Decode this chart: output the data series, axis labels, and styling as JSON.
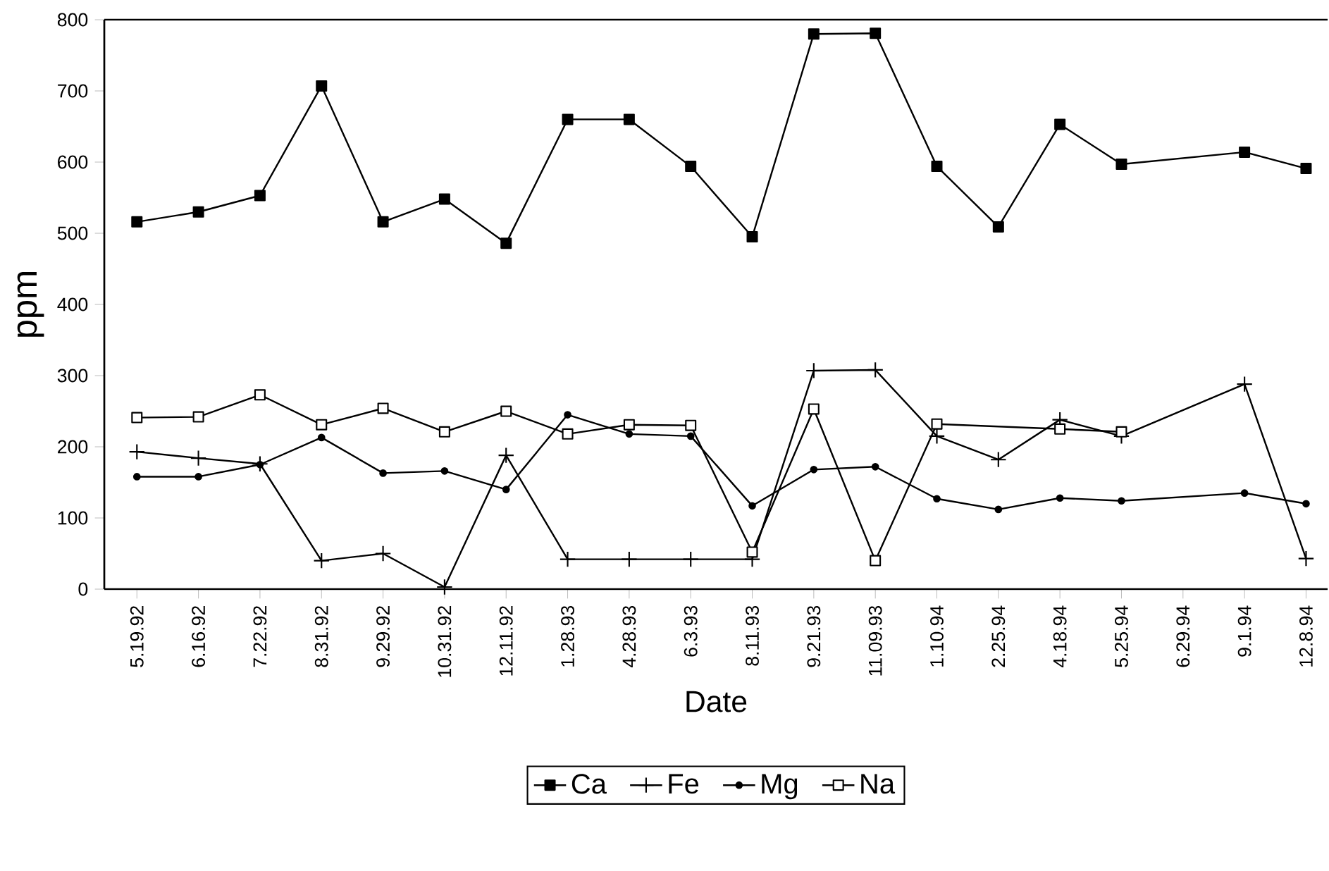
{
  "chart_data": {
    "type": "line",
    "xlabel": "Date",
    "ylabel": "ppm",
    "categories": [
      "5.19.92",
      "6.16.92",
      "7.22.92",
      "8.31.92",
      "9.29.92",
      "10.31.92",
      "12.11.92",
      "1.28.93",
      "4.28.93",
      "6.3.93",
      "8.11.93",
      "9.21.93",
      "11.09.93",
      "1.10.94",
      "2.25.94",
      "4.18.94",
      "5.25.94",
      "6.29.94",
      "9.1.94",
      "12.8.94"
    ],
    "series": [
      {
        "name": "Ca",
        "color": "#000000",
        "marker": "square",
        "values": [
          516,
          530,
          553,
          707,
          516,
          548,
          486,
          660,
          660,
          594,
          495,
          780,
          781,
          594,
          509,
          653,
          597,
          null,
          614,
          591
        ]
      },
      {
        "name": "Fe",
        "color": "#000000",
        "marker": "cross",
        "values": [
          193,
          184,
          176,
          40,
          50,
          3,
          188,
          42,
          42,
          42,
          42,
          307,
          308,
          215,
          182,
          238,
          215,
          null,
          288,
          43
        ]
      },
      {
        "name": "Mg",
        "color": "#000000",
        "marker": "circle",
        "values": [
          158,
          158,
          175,
          213,
          163,
          166,
          140,
          245,
          218,
          215,
          117,
          168,
          172,
          127,
          112,
          128,
          124,
          null,
          135,
          120
        ]
      },
      {
        "name": "Na",
        "color": "#000000",
        "marker": "square",
        "values": [
          241,
          242,
          273,
          231,
          254,
          221,
          250,
          218,
          231,
          230,
          52,
          253,
          40,
          232,
          null,
          225,
          221,
          null,
          null,
          null
        ]
      }
    ],
    "ylim": [
      0,
      800
    ],
    "yticks": [
      0,
      100,
      200,
      300,
      400,
      500,
      600,
      700,
      800
    ],
    "grid": false,
    "legend": "bottom",
    "line_style": "solid"
  }
}
